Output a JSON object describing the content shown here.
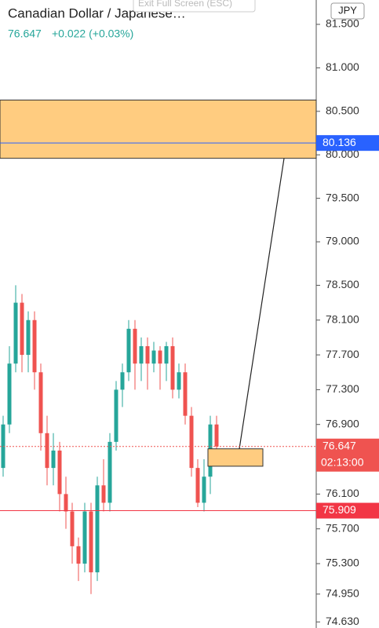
{
  "chart_data": {
    "type": "candlestick",
    "title": "Canadian Dollar / Japanese…",
    "last_price": 76.647,
    "change": "+0.022 (+0.03%)",
    "overlay_button": "Exit Full Screen (ESC)",
    "currency": "JPY",
    "countdown": "02:13:00",
    "up_color": "#26a69a",
    "down_color": "#ef5350",
    "open": [
      76.4,
      76.9,
      77.6,
      78.3,
      77.7,
      78.1,
      77.5,
      76.8,
      76.4,
      76.6,
      76.1,
      75.9,
      75.5,
      75.3,
      75.9,
      75.2,
      76.2,
      76.0,
      76.7,
      77.3,
      77.5,
      78.0,
      77.6,
      77.8,
      77.6,
      77.75,
      77.6,
      77.8,
      77.3,
      77.5,
      77.0,
      76.4,
      76.0,
      76.3,
      76.9
    ],
    "high": [
      77.0,
      77.8,
      78.5,
      78.4,
      78.2,
      78.2,
      77.6,
      77.0,
      76.8,
      76.7,
      76.3,
      76.0,
      75.6,
      76.0,
      76.0,
      76.3,
      76.5,
      76.8,
      77.4,
      77.6,
      78.1,
      78.1,
      77.9,
      77.9,
      77.85,
      77.8,
      77.85,
      77.9,
      77.6,
      77.6,
      77.1,
      76.5,
      76.5,
      77.0,
      77.0
    ],
    "low": [
      76.3,
      76.8,
      77.5,
      77.5,
      77.5,
      77.3,
      76.6,
      76.2,
      76.2,
      75.9,
      75.7,
      75.3,
      75.1,
      75.2,
      74.95,
      75.1,
      75.9,
      75.9,
      76.6,
      77.1,
      77.4,
      77.3,
      77.4,
      77.3,
      77.5,
      77.3,
      77.4,
      77.2,
      77.2,
      76.9,
      76.3,
      75.95,
      75.9,
      76.1,
      76.6
    ],
    "close": [
      76.9,
      77.6,
      78.3,
      77.7,
      78.1,
      77.5,
      76.8,
      76.4,
      76.6,
      76.1,
      75.9,
      75.5,
      75.3,
      75.9,
      75.2,
      76.2,
      76.0,
      76.7,
      77.3,
      77.5,
      78.0,
      77.6,
      77.8,
      77.6,
      77.75,
      77.6,
      77.8,
      77.3,
      77.5,
      77.0,
      76.4,
      76.0,
      76.3,
      76.9,
      76.647
    ],
    "ylim": [
      74.56,
      81.78
    ],
    "yticks": [
      {
        "value": 81.5,
        "label": "81.500"
      },
      {
        "value": 81.0,
        "label": "81.000"
      },
      {
        "value": 80.5,
        "label": "80.500"
      },
      {
        "value": 80.0,
        "label": "80.000"
      },
      {
        "value": 79.5,
        "label": "79.500"
      },
      {
        "value": 79.0,
        "label": "79.000"
      },
      {
        "value": 78.5,
        "label": "78.500"
      },
      {
        "value": 78.1,
        "label": "78.100"
      },
      {
        "value": 77.7,
        "label": "77.700"
      },
      {
        "value": 77.3,
        "label": "77.300"
      },
      {
        "value": 76.9,
        "label": "76.900"
      },
      {
        "value": 76.1,
        "label": "76.100"
      },
      {
        "value": 75.7,
        "label": "75.700"
      },
      {
        "value": 75.3,
        "label": "75.300"
      },
      {
        "value": 74.95,
        "label": "74.950"
      },
      {
        "value": 74.63,
        "label": "74.630"
      }
    ],
    "price_lines": [
      {
        "value": 80.136,
        "color": "#2962ff",
        "style": "solid"
      },
      {
        "value": 76.647,
        "color": "#ef5350",
        "style": "dashed"
      },
      {
        "value": 75.909,
        "color": "#f23645",
        "style": "solid"
      }
    ],
    "zones": [
      {
        "top": 80.63,
        "bottom": 79.96,
        "color": "#ffcc80"
      },
      {
        "top": 76.62,
        "bottom": 76.42,
        "color": "#ffcc80"
      }
    ],
    "trendline": {
      "start": 76.62,
      "end": 79.96
    }
  }
}
